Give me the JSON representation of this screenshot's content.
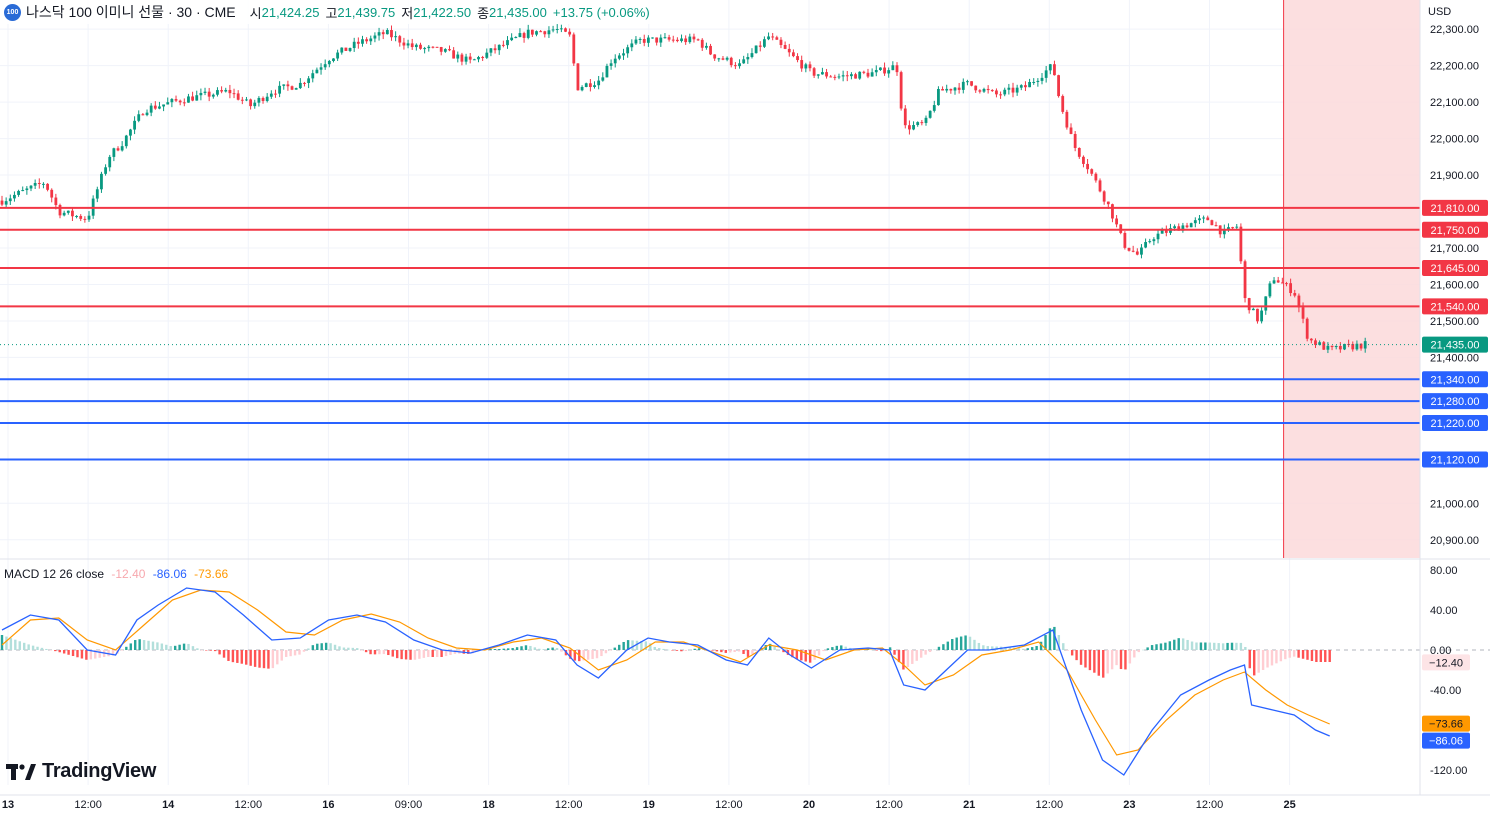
{
  "header": {
    "symbol_icon": "100",
    "title": "나스닥 100 이미니 선물 · 30 · CME",
    "open_label": "시",
    "open_value": "21,424.25",
    "high_label": "고",
    "high_value": "21,439.75",
    "low_label": "저",
    "low_value": "21,422.50",
    "close_label": "종",
    "close_value": "21,435.00",
    "change": "+13.75 (+0.06%)"
  },
  "currency": "USD",
  "brand": "TradingView",
  "colors": {
    "up": "#089981",
    "down": "#f23645",
    "resistance": "#f23645",
    "support": "#2962ff",
    "macd_line": "#2962ff",
    "signal_line": "#ff9800",
    "highlight_zone": "#fbd9db"
  },
  "chart_data": [
    {
      "type": "candlestick",
      "title": "나스닥 100 이미니 선물 · 30 · CME",
      "ylabel": "USD",
      "ylim": [
        20850,
        22380
      ],
      "y_ticks": [
        "22,300.00",
        "22,200.00",
        "22,100.00",
        "22,000.00",
        "21,900.00",
        "21,700.00",
        "21,600.00",
        "21,500.00",
        "21,400.00",
        "21,000.00",
        "20,900.00"
      ],
      "x_ticks": [
        "13",
        "12:00",
        "14",
        "12:00",
        "16",
        "09:00",
        "18",
        "12:00",
        "19",
        "12:00",
        "20",
        "12:00",
        "21",
        "12:00",
        "23",
        "12:00",
        "25"
      ],
      "last_price": 21435.0,
      "last_price_label": "21,435.00",
      "path_points": [
        [
          0,
          21830
        ],
        [
          0.03,
          21880
        ],
        [
          0.04,
          21800
        ],
        [
          0.06,
          21780
        ],
        [
          0.075,
          21950
        ],
        [
          0.085,
          21990
        ],
        [
          0.1,
          22080
        ],
        [
          0.13,
          22110
        ],
        [
          0.16,
          22130
        ],
        [
          0.175,
          22090
        ],
        [
          0.19,
          22130
        ],
        [
          0.21,
          22150
        ],
        [
          0.23,
          22220
        ],
        [
          0.25,
          22260
        ],
        [
          0.27,
          22290
        ],
        [
          0.29,
          22250
        ],
        [
          0.31,
          22240
        ],
        [
          0.33,
          22210
        ],
        [
          0.35,
          22250
        ],
        [
          0.37,
          22290
        ],
        [
          0.39,
          22300
        ],
        [
          0.4,
          22280
        ],
        [
          0.405,
          22140
        ],
        [
          0.42,
          22160
        ],
        [
          0.43,
          22220
        ],
        [
          0.45,
          22270
        ],
        [
          0.47,
          22270
        ],
        [
          0.49,
          22270
        ],
        [
          0.5,
          22230
        ],
        [
          0.52,
          22200
        ],
        [
          0.54,
          22280
        ],
        [
          0.555,
          22230
        ],
        [
          0.57,
          22180
        ],
        [
          0.59,
          22170
        ],
        [
          0.615,
          22180
        ],
        [
          0.63,
          22200
        ],
        [
          0.635,
          22030
        ],
        [
          0.65,
          22040
        ],
        [
          0.66,
          22130
        ],
        [
          0.68,
          22150
        ],
        [
          0.7,
          22120
        ],
        [
          0.72,
          22140
        ],
        [
          0.74,
          22200
        ],
        [
          0.745,
          22100
        ],
        [
          0.755,
          21980
        ],
        [
          0.765,
          21920
        ],
        [
          0.78,
          21810
        ],
        [
          0.79,
          21710
        ],
        [
          0.8,
          21680
        ],
        [
          0.81,
          21730
        ],
        [
          0.83,
          21760
        ],
        [
          0.85,
          21780
        ],
        [
          0.86,
          21740
        ],
        [
          0.87,
          21760
        ],
        [
          0.875,
          21560
        ],
        [
          0.885,
          21500
        ],
        [
          0.895,
          21620
        ],
        [
          0.91,
          21580
        ],
        [
          0.92,
          21450
        ],
        [
          0.935,
          21420
        ],
        [
          0.95,
          21430
        ],
        [
          0.96,
          21435
        ]
      ],
      "horizontal_levels": [
        {
          "kind": "resistance",
          "value": 21810,
          "label": "21,810.00"
        },
        {
          "kind": "resistance",
          "value": 21750,
          "label": "21,750.00"
        },
        {
          "kind": "resistance",
          "value": 21645,
          "label": "21,645.00"
        },
        {
          "kind": "resistance",
          "value": 21540,
          "label": "21,540.00"
        },
        {
          "kind": "support",
          "value": 21340,
          "label": "21,340.00"
        },
        {
          "kind": "support",
          "value": 21280,
          "label": "21,280.00"
        },
        {
          "kind": "support",
          "value": 21220,
          "label": "21,220.00"
        },
        {
          "kind": "support",
          "value": 21120,
          "label": "21,120.00"
        }
      ],
      "highlight_zone_start_label": "25"
    },
    {
      "type": "line",
      "title": "MACD 12 26 close",
      "legend": [
        "-12.40",
        "-86.06",
        "-73.66"
      ],
      "ylim": [
        -135,
        90
      ],
      "y_ticks": [
        "80.00",
        "40.00",
        "0.00",
        "-40.00",
        "-120.00"
      ],
      "histogram_label": "−12.40",
      "macd_label": "−86.06",
      "signal_label": "−73.66",
      "macd_points": [
        [
          0,
          20
        ],
        [
          0.02,
          35
        ],
        [
          0.04,
          30
        ],
        [
          0.06,
          0
        ],
        [
          0.08,
          -5
        ],
        [
          0.095,
          30
        ],
        [
          0.11,
          45
        ],
        [
          0.13,
          62
        ],
        [
          0.15,
          58
        ],
        [
          0.17,
          35
        ],
        [
          0.19,
          10
        ],
        [
          0.21,
          12
        ],
        [
          0.23,
          30
        ],
        [
          0.25,
          35
        ],
        [
          0.27,
          28
        ],
        [
          0.29,
          10
        ],
        [
          0.31,
          0
        ],
        [
          0.33,
          -3
        ],
        [
          0.35,
          5
        ],
        [
          0.37,
          15
        ],
        [
          0.39,
          10
        ],
        [
          0.405,
          -15
        ],
        [
          0.42,
          -28
        ],
        [
          0.44,
          0
        ],
        [
          0.455,
          12
        ],
        [
          0.47,
          8
        ],
        [
          0.49,
          5
        ],
        [
          0.51,
          -10
        ],
        [
          0.525,
          -15
        ],
        [
          0.54,
          12
        ],
        [
          0.555,
          -5
        ],
        [
          0.57,
          -18
        ],
        [
          0.59,
          0
        ],
        [
          0.61,
          2
        ],
        [
          0.625,
          0
        ],
        [
          0.635,
          -35
        ],
        [
          0.65,
          -40
        ],
        [
          0.665,
          -20
        ],
        [
          0.68,
          0
        ],
        [
          0.695,
          0
        ],
        [
          0.72,
          5
        ],
        [
          0.74,
          20
        ],
        [
          0.76,
          -60
        ],
        [
          0.775,
          -110
        ],
        [
          0.79,
          -125
        ],
        [
          0.81,
          -80
        ],
        [
          0.83,
          -45
        ],
        [
          0.85,
          -30
        ],
        [
          0.865,
          -20
        ],
        [
          0.875,
          -15
        ],
        [
          0.88,
          -55
        ],
        [
          0.895,
          -60
        ],
        [
          0.91,
          -65
        ],
        [
          0.925,
          -80
        ],
        [
          0.935,
          -86
        ]
      ],
      "signal_points": [
        [
          0,
          5
        ],
        [
          0.02,
          30
        ],
        [
          0.04,
          32
        ],
        [
          0.06,
          10
        ],
        [
          0.08,
          0
        ],
        [
          0.1,
          25
        ],
        [
          0.12,
          50
        ],
        [
          0.14,
          60
        ],
        [
          0.16,
          58
        ],
        [
          0.18,
          40
        ],
        [
          0.2,
          18
        ],
        [
          0.22,
          15
        ],
        [
          0.24,
          30
        ],
        [
          0.26,
          36
        ],
        [
          0.28,
          28
        ],
        [
          0.3,
          12
        ],
        [
          0.32,
          2
        ],
        [
          0.34,
          0
        ],
        [
          0.36,
          8
        ],
        [
          0.38,
          12
        ],
        [
          0.4,
          2
        ],
        [
          0.42,
          -20
        ],
        [
          0.44,
          -10
        ],
        [
          0.46,
          8
        ],
        [
          0.48,
          8
        ],
        [
          0.5,
          -2
        ],
        [
          0.52,
          -12
        ],
        [
          0.54,
          5
        ],
        [
          0.56,
          0
        ],
        [
          0.58,
          -10
        ],
        [
          0.6,
          0
        ],
        [
          0.62,
          2
        ],
        [
          0.635,
          -15
        ],
        [
          0.65,
          -35
        ],
        [
          0.67,
          -25
        ],
        [
          0.69,
          -5
        ],
        [
          0.71,
          0
        ],
        [
          0.73,
          8
        ],
        [
          0.75,
          -20
        ],
        [
          0.77,
          -70
        ],
        [
          0.785,
          -105
        ],
        [
          0.8,
          -100
        ],
        [
          0.82,
          -70
        ],
        [
          0.84,
          -45
        ],
        [
          0.86,
          -30
        ],
        [
          0.875,
          -22
        ],
        [
          0.89,
          -40
        ],
        [
          0.905,
          -55
        ],
        [
          0.92,
          -65
        ],
        [
          0.935,
          -74
        ]
      ]
    }
  ]
}
